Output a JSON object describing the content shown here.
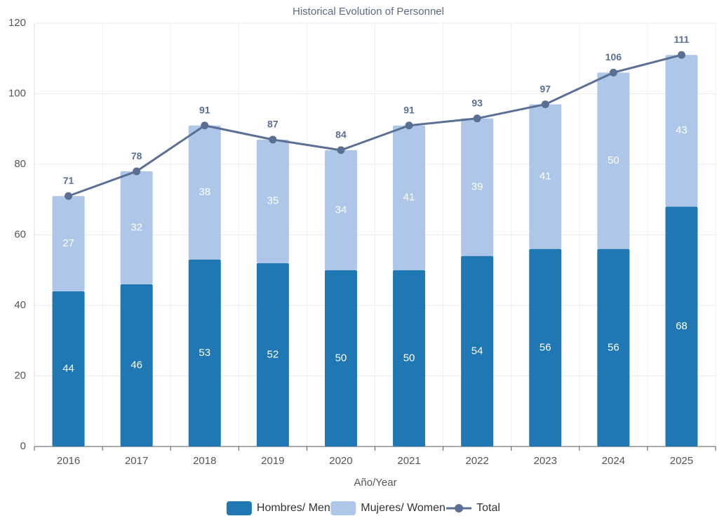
{
  "chart_data": {
    "type": "bar",
    "stacked": true,
    "title": "Historical Evolution of Personnel",
    "x_label": "Año/Year",
    "categories": [
      "2016",
      "2017",
      "2018",
      "2019",
      "2020",
      "2021",
      "2022",
      "2023",
      "2024",
      "2025"
    ],
    "series": [
      {
        "name": "Hombres/ Men",
        "color": "#1f77b4",
        "values": [
          44,
          46,
          53,
          52,
          50,
          50,
          54,
          56,
          56,
          68
        ]
      },
      {
        "name": "Mujeres/ Women",
        "color": "#aec7e8",
        "values": [
          27,
          32,
          38,
          35,
          34,
          41,
          39,
          41,
          50,
          43
        ]
      },
      {
        "name": "Total",
        "type": "line",
        "color": "#5b6f95",
        "values": [
          71,
          78,
          91,
          87,
          84,
          91,
          93,
          97,
          106,
          111
        ]
      }
    ],
    "ylim": [
      0,
      120
    ],
    "yticks": [
      0,
      20,
      40,
      60,
      80,
      100,
      120
    ],
    "grid": true,
    "legend": "bottom"
  }
}
